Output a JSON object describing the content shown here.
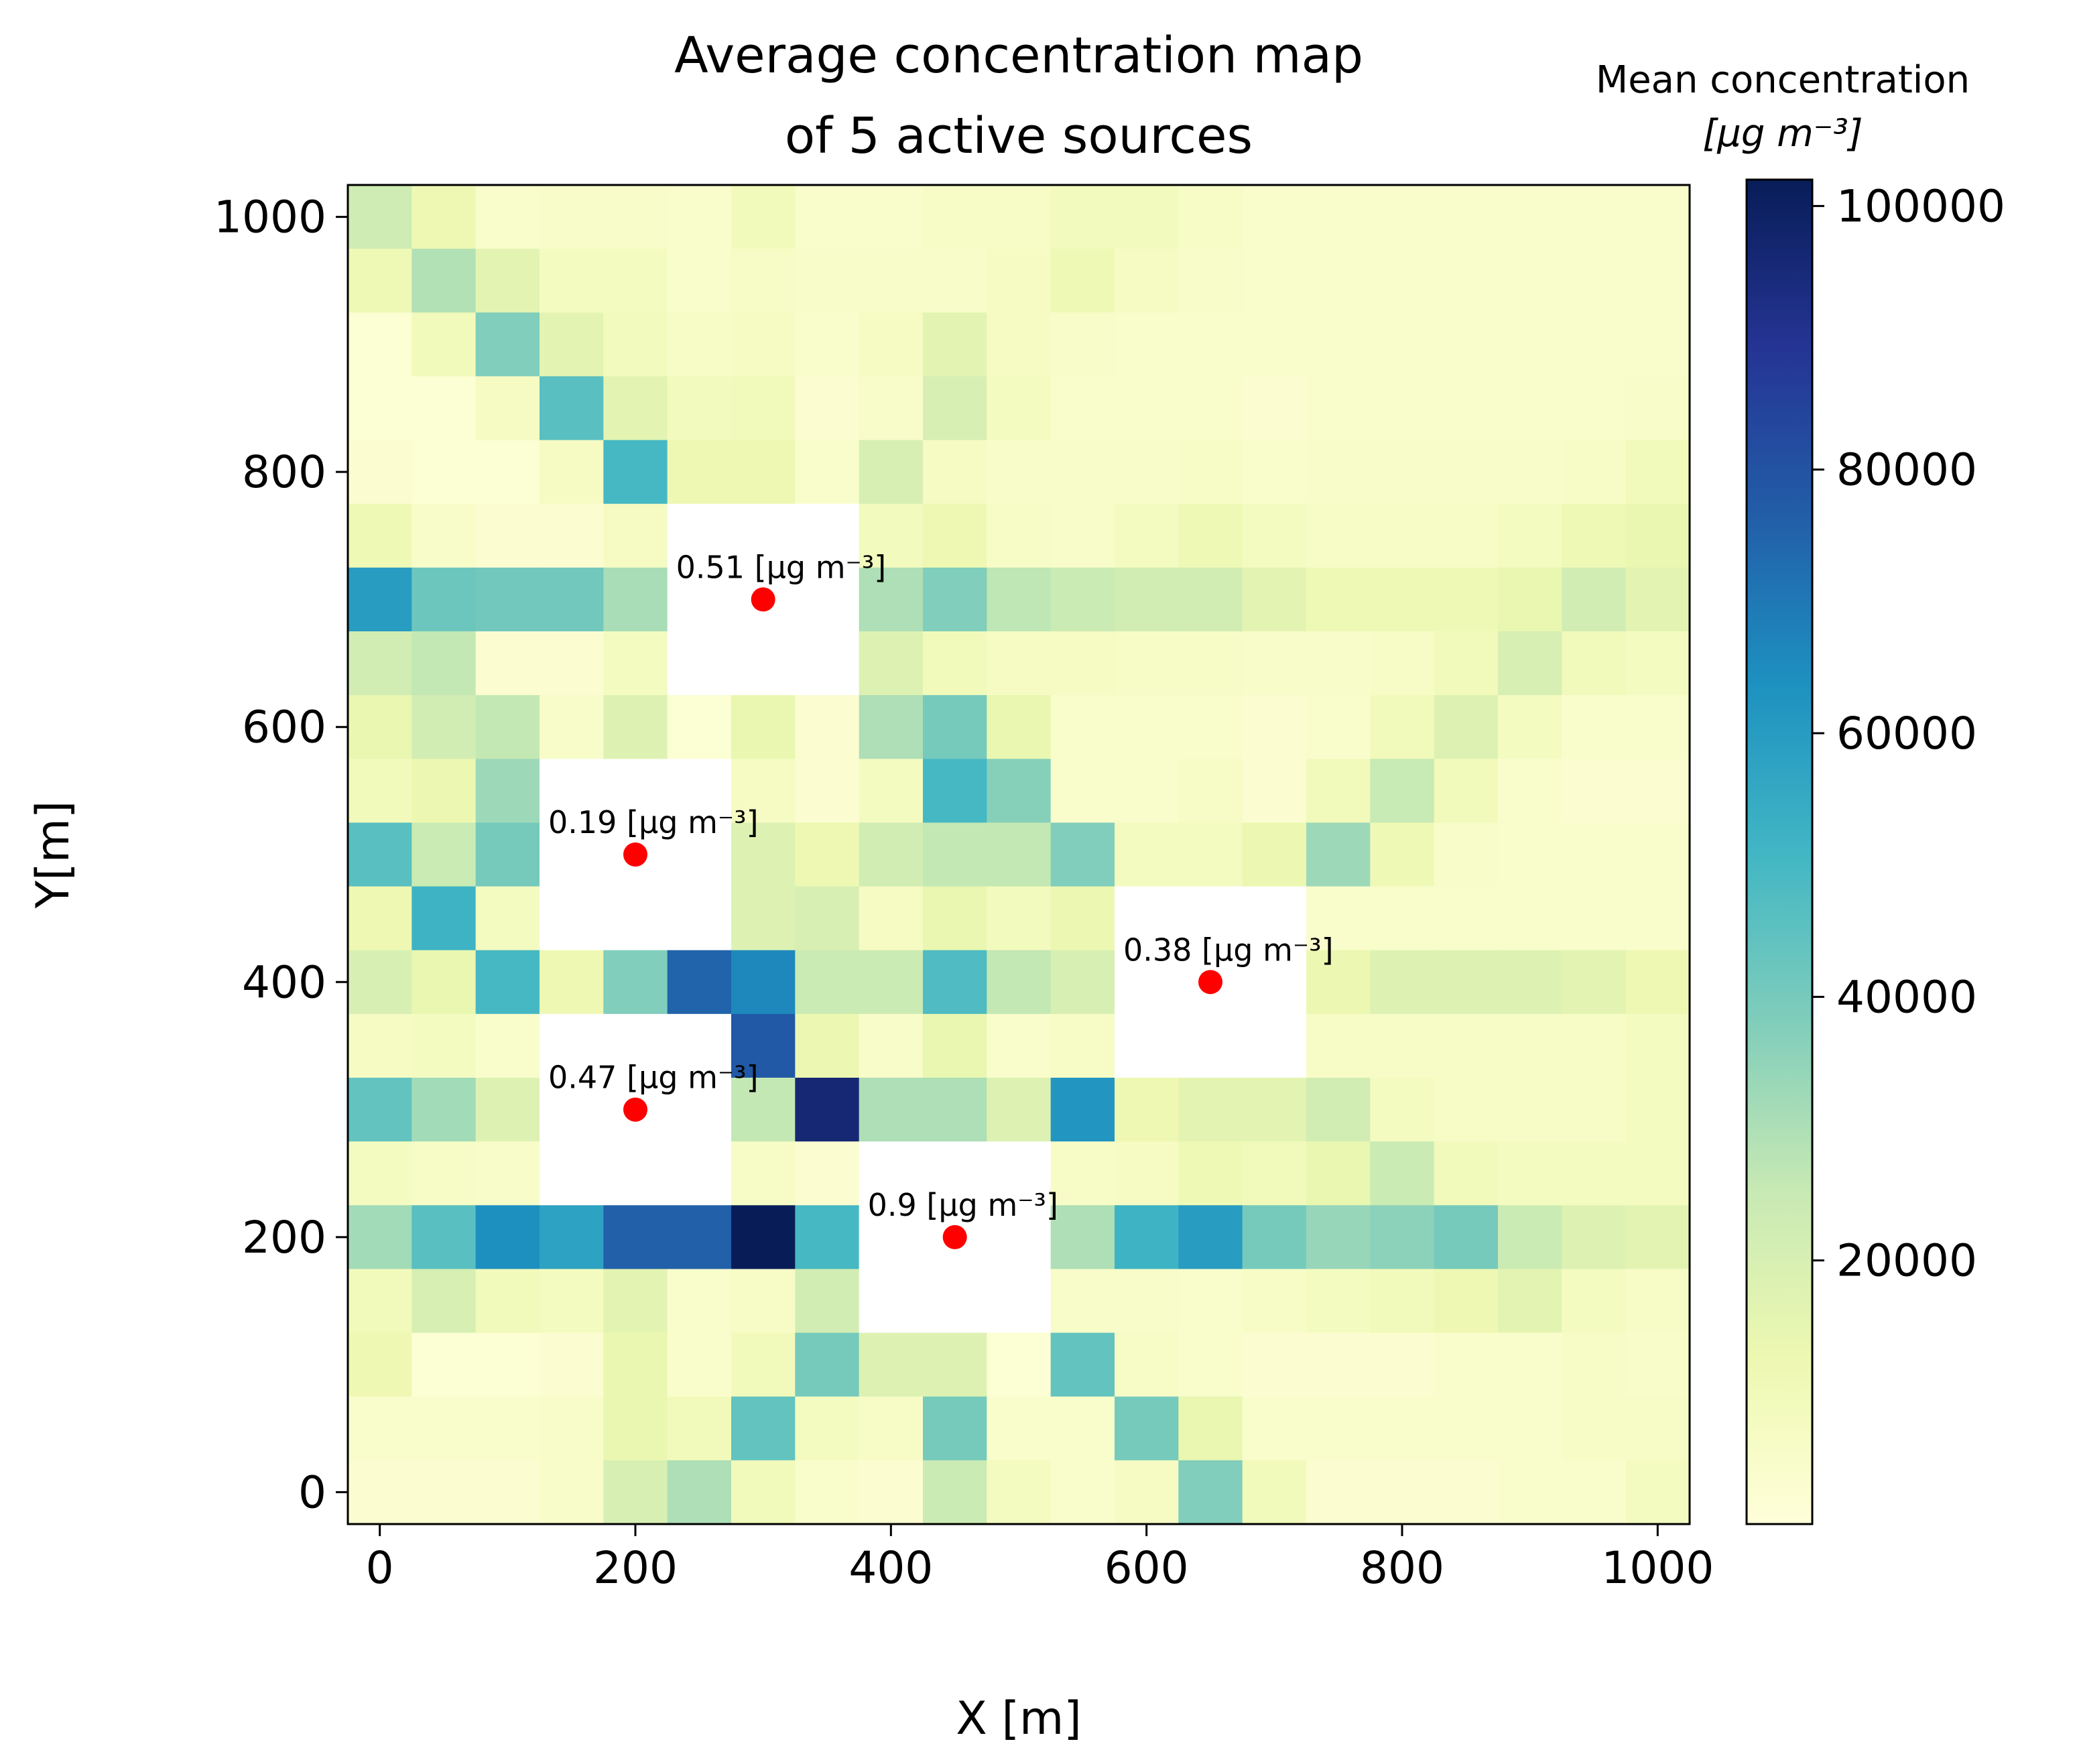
{
  "chart_data": {
    "type": "heatmap",
    "title": [
      "Average concentration map",
      "of 5 active sources"
    ],
    "xlabel": "X [m]",
    "ylabel": "Y[m]",
    "xlim": [
      -25,
      1025
    ],
    "ylim": [
      -25,
      1025
    ],
    "xticks": [
      0,
      200,
      400,
      600,
      800,
      1000
    ],
    "yticks": [
      0,
      200,
      400,
      600,
      800,
      1000
    ],
    "grid": false,
    "cell_size_m": 50,
    "colormap": "YlGnBu",
    "colorbar": {
      "title": [
        "Mean concentration",
        "[μg m⁻³]"
      ],
      "min": 0,
      "max": 102000,
      "ticks": [
        20000,
        40000,
        60000,
        80000,
        100000
      ]
    },
    "grid_rows_top_to_bottom": [
      [
        23000,
        12000,
        4000,
        5000,
        5000,
        4000,
        10000,
        4000,
        4000,
        6000,
        6000,
        9000,
        9000,
        6000,
        4000,
        4000,
        4000,
        4000,
        4000,
        4000,
        4000
      ],
      [
        11000,
        29000,
        16000,
        8000,
        8000,
        4000,
        6000,
        5000,
        5000,
        5000,
        7000,
        11000,
        7000,
        5000,
        4000,
        4000,
        4000,
        4000,
        4000,
        4000,
        4000
      ],
      [
        2000,
        10000,
        38000,
        16000,
        9000,
        6000,
        7000,
        4000,
        7000,
        16000,
        7000,
        5000,
        4000,
        4000,
        4000,
        4000,
        4000,
        4000,
        4000,
        4000,
        4000
      ],
      [
        2000,
        2000,
        7000,
        46000,
        16000,
        9000,
        10000,
        3000,
        5000,
        20000,
        8000,
        4000,
        4000,
        4000,
        3000,
        4000,
        4000,
        4000,
        4000,
        4000,
        5000
      ],
      [
        3000,
        2000,
        2000,
        7000,
        50000,
        12000,
        12000,
        4000,
        20000,
        7000,
        5000,
        5000,
        5000,
        6000,
        4000,
        5000,
        5000,
        5000,
        5000,
        6000,
        10000
      ],
      [
        11000,
        5000,
        3000,
        3000,
        7000,
        null,
        null,
        null,
        9000,
        12000,
        6000,
        5000,
        8000,
        11000,
        8000,
        6000,
        6000,
        6000,
        8000,
        11000,
        14000
      ],
      [
        60000,
        42000,
        41000,
        41000,
        31000,
        null,
        null,
        null,
        30000,
        38000,
        27000,
        24000,
        22000,
        22000,
        16000,
        11000,
        11000,
        11000,
        14000,
        22000,
        16000
      ],
      [
        22000,
        26000,
        3000,
        3000,
        8000,
        null,
        null,
        null,
        18000,
        10000,
        7000,
        7000,
        6000,
        6000,
        5000,
        5000,
        6000,
        10000,
        20000,
        10000,
        8000
      ],
      [
        14000,
        22000,
        26000,
        5000,
        18000,
        2000,
        14000,
        3000,
        30000,
        40000,
        14000,
        4000,
        4000,
        4000,
        3000,
        4000,
        10000,
        18000,
        8000,
        4000,
        4000
      ],
      [
        10000,
        13000,
        33000,
        null,
        null,
        null,
        7000,
        3000,
        8000,
        50000,
        37000,
        4000,
        4000,
        6000,
        3000,
        10000,
        25000,
        10000,
        4000,
        3000,
        3000
      ],
      [
        46000,
        24000,
        40000,
        null,
        null,
        null,
        18000,
        12000,
        22000,
        26000,
        26000,
        38000,
        8000,
        8000,
        13000,
        33000,
        11000,
        5000,
        4000,
        4000,
        4000
      ],
      [
        12000,
        52000,
        8000,
        null,
        null,
        null,
        18000,
        20000,
        7000,
        14000,
        9000,
        13000,
        null,
        null,
        null,
        4000,
        4000,
        4000,
        4000,
        4000,
        4000
      ],
      [
        20000,
        14000,
        50000,
        12000,
        38000,
        75000,
        66000,
        24000,
        24000,
        48000,
        26000,
        20000,
        null,
        null,
        null,
        13000,
        18000,
        18000,
        18000,
        16000,
        12000
      ],
      [
        7000,
        8000,
        4000,
        null,
        null,
        null,
        78000,
        13000,
        5000,
        14000,
        4000,
        6000,
        null,
        null,
        null,
        6000,
        6000,
        6000,
        6000,
        6000,
        8000
      ],
      [
        44000,
        32000,
        18000,
        null,
        null,
        null,
        26000,
        96000,
        30000,
        30000,
        18000,
        62000,
        12000,
        16000,
        16000,
        22000,
        8000,
        6000,
        6000,
        6000,
        8000
      ],
      [
        8000,
        6000,
        5000,
        null,
        null,
        null,
        6000,
        3000,
        null,
        null,
        null,
        6000,
        7000,
        11000,
        10000,
        14000,
        24000,
        10000,
        8000,
        8000,
        8000
      ],
      [
        32000,
        46000,
        64000,
        58000,
        76000,
        76000,
        102000,
        50000,
        null,
        null,
        null,
        30000,
        52000,
        60000,
        40000,
        34000,
        36000,
        40000,
        24000,
        18000,
        16000
      ],
      [
        10000,
        20000,
        10000,
        8000,
        16000,
        4000,
        6000,
        22000,
        null,
        null,
        null,
        5000,
        5000,
        4000,
        6000,
        8000,
        10000,
        12000,
        16000,
        8000,
        6000
      ],
      [
        12000,
        2000,
        2000,
        3000,
        14000,
        4000,
        10000,
        40000,
        18000,
        18000,
        2000,
        44000,
        6000,
        4000,
        3000,
        3000,
        3000,
        4000,
        4000,
        6000,
        5000
      ],
      [
        4000,
        4000,
        4000,
        5000,
        14000,
        10000,
        44000,
        8000,
        6000,
        40000,
        4000,
        4000,
        40000,
        14000,
        4000,
        4000,
        4000,
        4000,
        4000,
        6000,
        6000
      ],
      [
        3000,
        3000,
        3000,
        5000,
        20000,
        30000,
        10000,
        4000,
        3000,
        24000,
        8000,
        4000,
        7000,
        38000,
        10000,
        3000,
        3000,
        3000,
        4000,
        4000,
        8000
      ]
    ],
    "sources": [
      {
        "x": 300,
        "y": 700,
        "label": "0.51 [μg m⁻³]"
      },
      {
        "x": 200,
        "y": 500,
        "label": "0.19 [μg m⁻³]"
      },
      {
        "x": 650,
        "y": 400,
        "label": "0.38 [μg m⁻³]"
      },
      {
        "x": 200,
        "y": 300,
        "label": "0.47 [μg m⁻³]"
      },
      {
        "x": 450,
        "y": 200,
        "label": "0.9 [μg m⁻³]"
      }
    ],
    "colors": {
      "source_marker": "#ff0000",
      "masked_cell": "#ffffff",
      "colormap_stops": [
        "#ffffd9",
        "#edf8b1",
        "#c7e9b4",
        "#7fcdbb",
        "#41b6c4",
        "#1d91c0",
        "#225ea8",
        "#253494",
        "#081d58"
      ]
    }
  }
}
